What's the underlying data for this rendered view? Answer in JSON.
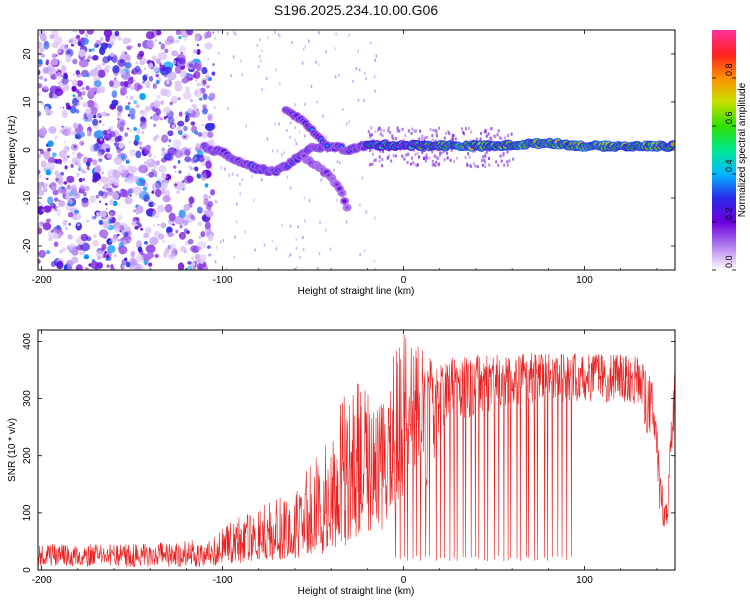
{
  "title": "S196.2025.234.10.00.G06",
  "chart_data": [
    {
      "type": "heatmap",
      "title": "S196.2025.234.10.00.G06",
      "xlabel": "Height of straight line (km)",
      "ylabel": "Frequency (Hz)",
      "xlim": [
        -202,
        150
      ],
      "ylim": [
        -25,
        25
      ],
      "x_ticks": [
        -200,
        -100,
        0,
        100
      ],
      "y_ticks": [
        -20,
        -10,
        0,
        10,
        20
      ],
      "colorbar": {
        "label": "Normalized spectral amplitude",
        "range": [
          0.0,
          1.0
        ],
        "ticks": [
          0.0,
          0.2,
          0.4,
          0.6,
          0.8
        ],
        "colors": [
          "#ffffff",
          "#b07cf0",
          "#6a00d8",
          "#2a2ae8",
          "#00b8ff",
          "#00e890",
          "#30e000",
          "#c8e000",
          "#ff9000",
          "#ff2020",
          "#ff30a0"
        ]
      },
      "features": {
        "noise_region_x": [
          -202,
          -105
        ],
        "main_track": [
          {
            "x": -110,
            "f": 0.5
          },
          {
            "x": -100,
            "f": -0.5
          },
          {
            "x": -90,
            "f": -2.5
          },
          {
            "x": -80,
            "f": -4.0
          },
          {
            "x": -70,
            "f": -4.5
          },
          {
            "x": -60,
            "f": -2.0
          },
          {
            "x": -50,
            "f": 0.5
          },
          {
            "x": -40,
            "f": 0.8
          },
          {
            "x": -30,
            "f": 0.0
          },
          {
            "x": -20,
            "f": 1.0
          },
          {
            "x": 0,
            "f": 1.0
          },
          {
            "x": 50,
            "f": 0.8
          },
          {
            "x": 80,
            "f": 1.5
          },
          {
            "x": 100,
            "f": 0.8
          },
          {
            "x": 150,
            "f": 0.8
          }
        ],
        "upper_branch": [
          {
            "x": -65,
            "f": 8.5
          },
          {
            "x": -55,
            "f": 6.0
          },
          {
            "x": -48,
            "f": 3.0
          },
          {
            "x": -42,
            "f": 0.5
          }
        ],
        "lower_branch": [
          {
            "x": -55,
            "f": -1.5
          },
          {
            "x": -45,
            "f": -4.0
          },
          {
            "x": -35,
            "f": -8.0
          },
          {
            "x": -30,
            "f": -13.0
          }
        ]
      }
    },
    {
      "type": "line",
      "xlabel": "Height of straight line (km)",
      "ylabel": "SNR (10 * v/v)",
      "xlim": [
        -202,
        150
      ],
      "ylim": [
        0,
        420
      ],
      "x_ticks": [
        -200,
        -100,
        0,
        100
      ],
      "y_ticks": [
        0,
        100,
        200,
        300,
        400
      ],
      "color": "#e82020",
      "envelope": [
        {
          "x": -202,
          "low": 5,
          "mid": 22,
          "high": 45
        },
        {
          "x": -150,
          "low": 5,
          "mid": 22,
          "high": 45
        },
        {
          "x": -110,
          "low": 5,
          "mid": 25,
          "high": 55
        },
        {
          "x": -95,
          "low": 10,
          "mid": 35,
          "high": 85
        },
        {
          "x": -80,
          "low": 15,
          "mid": 45,
          "high": 110
        },
        {
          "x": -60,
          "low": 20,
          "mid": 55,
          "high": 140
        },
        {
          "x": -40,
          "low": 30,
          "mid": 90,
          "high": 260
        },
        {
          "x": -30,
          "low": 40,
          "mid": 130,
          "high": 340
        },
        {
          "x": -15,
          "low": 60,
          "mid": 160,
          "high": 310
        },
        {
          "x": 0,
          "low": 100,
          "mid": 220,
          "high": 420
        },
        {
          "x": 15,
          "low": 150,
          "mid": 280,
          "high": 370
        },
        {
          "x": 20,
          "low": 250,
          "mid": 330,
          "high": 370
        },
        {
          "x": 60,
          "low": 290,
          "mid": 340,
          "high": 380
        },
        {
          "x": 100,
          "low": 295,
          "mid": 340,
          "high": 380
        },
        {
          "x": 130,
          "low": 290,
          "mid": 330,
          "high": 375
        },
        {
          "x": 138,
          "low": 200,
          "mid": 280,
          "high": 330
        },
        {
          "x": 142,
          "low": 90,
          "mid": 150,
          "high": 200
        },
        {
          "x": 144,
          "low": 60,
          "mid": 80,
          "high": 110
        },
        {
          "x": 146,
          "low": 80,
          "mid": 110,
          "high": 140
        },
        {
          "x": 148,
          "low": 200,
          "mid": 240,
          "high": 300
        },
        {
          "x": 150,
          "low": 250,
          "mid": 300,
          "high": 350
        }
      ],
      "dropouts": {
        "x_range": [
          -5,
          92
        ],
        "min_snr": 15,
        "count": 40
      }
    }
  ]
}
